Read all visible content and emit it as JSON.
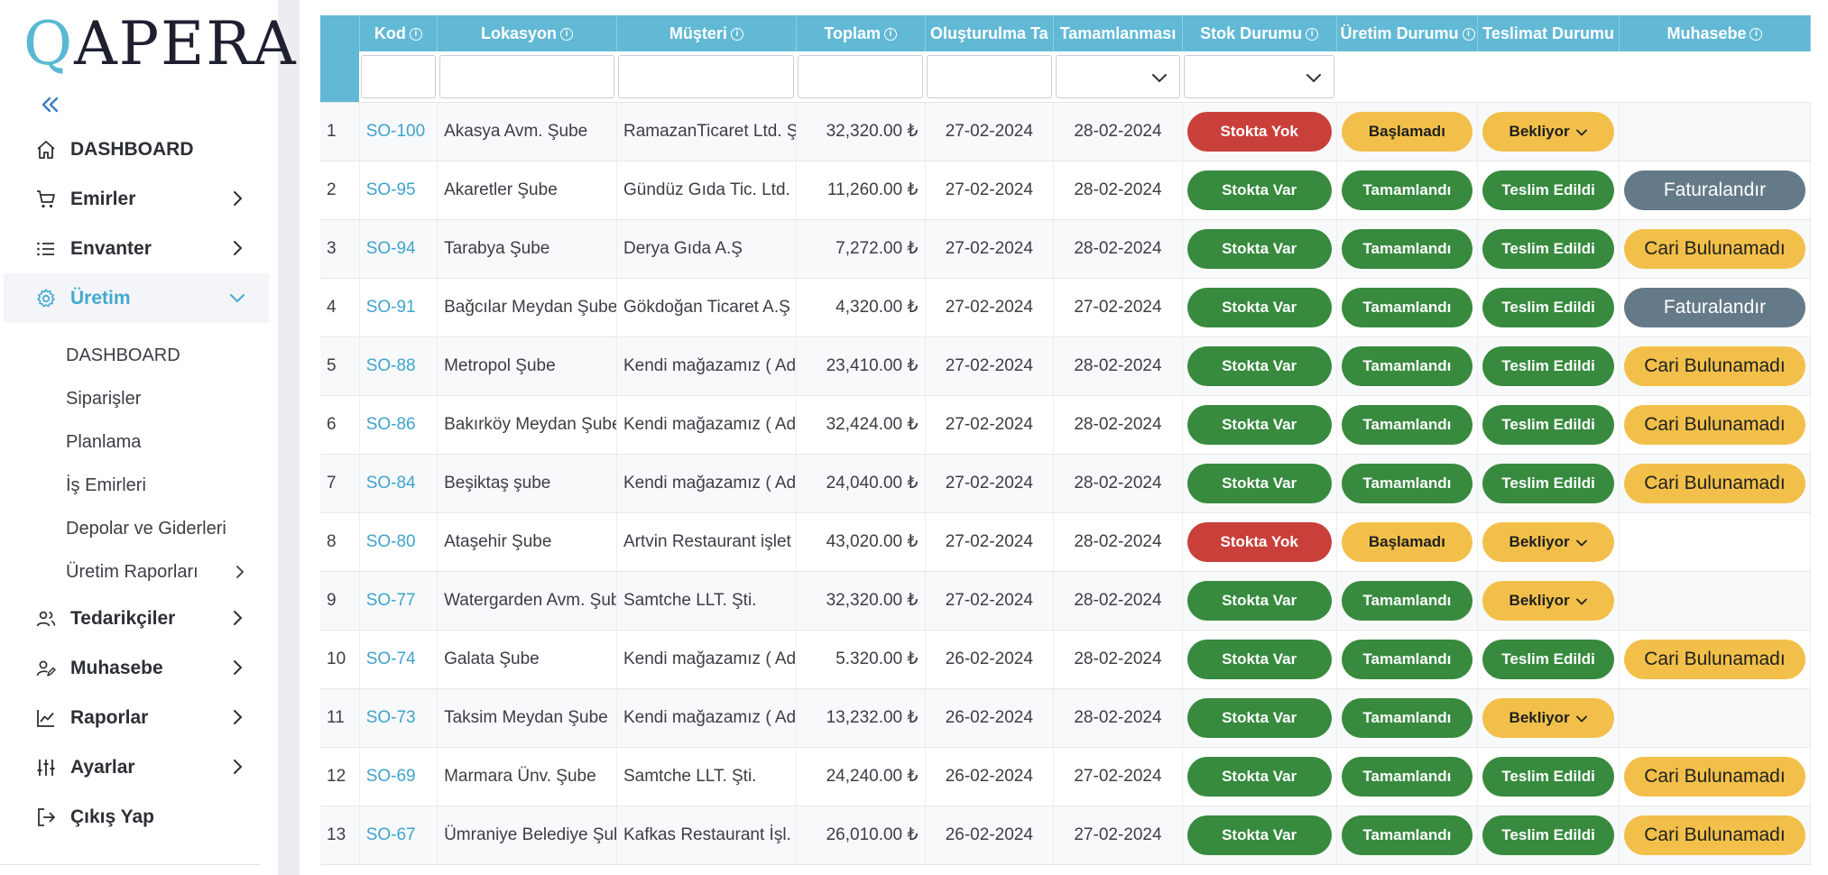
{
  "brand": {
    "logo_q": "Q",
    "logo_rest": "APERA"
  },
  "sidebar": {
    "items": [
      {
        "label": "DASHBOARD",
        "icon": "home-icon",
        "has_chevron": false
      },
      {
        "label": "Emirler",
        "icon": "cart-icon",
        "has_chevron": true
      },
      {
        "label": "Envanter",
        "icon": "list-icon",
        "has_chevron": true
      },
      {
        "label": "Üretim",
        "icon": "gear-icon",
        "has_chevron": true,
        "active": true
      }
    ],
    "subitems": [
      {
        "label": "DASHBOARD"
      },
      {
        "label": "Siparişler"
      },
      {
        "label": "Planlama"
      },
      {
        "label": "İş Emirleri"
      },
      {
        "label": "Depolar ve Giderleri"
      },
      {
        "label": "Üretim Raporları",
        "has_chevron": true
      }
    ],
    "items_after": [
      {
        "label": "Tedarikçiler",
        "icon": "users-icon"
      },
      {
        "label": "Muhasebe",
        "icon": "user-edit-icon"
      },
      {
        "label": "Raporlar",
        "icon": "chart-line-icon"
      },
      {
        "label": "Ayarlar",
        "icon": "sliders-icon"
      },
      {
        "label": "Çıkış Yap",
        "icon": "logout-icon"
      }
    ]
  },
  "table": {
    "columns": [
      {
        "label": "",
        "info": false
      },
      {
        "label": "Kod",
        "info": true
      },
      {
        "label": "Lokasyon",
        "info": true
      },
      {
        "label": "Müşteri",
        "info": true
      },
      {
        "label": "Toplam",
        "info": true
      },
      {
        "label": "Oluşturulma Ta",
        "info": false
      },
      {
        "label": "Tamamlanması",
        "info": false
      },
      {
        "label": "Stok Durumu",
        "info": true
      },
      {
        "label": "Üretim Durumu",
        "info": true
      },
      {
        "label": "Teslimat Durumu",
        "info": false
      },
      {
        "label": "Muhasebe",
        "info": true
      }
    ],
    "rows": [
      {
        "no": "1",
        "code": "SO-100",
        "loc": "Akasya Avm. Şube",
        "cust": "RamazanTicaret Ltd. Ş",
        "total": "32,320.00 ₺",
        "created": "27-02-2024",
        "due": "28-02-2024",
        "stock": "Stokta Yok",
        "prod": "Başlamadı",
        "ship": "Bekliyor",
        "acc": ""
      },
      {
        "no": "2",
        "code": "SO-95",
        "loc": "Akaretler Şube",
        "cust": "Gündüz Gıda Tic. Ltd.",
        "total": "11,260.00 ₺",
        "created": "27-02-2024",
        "due": "28-02-2024",
        "stock": "Stokta Var",
        "prod": "Tamamlandı",
        "ship": "Teslim Edildi",
        "acc": "Faturalandır"
      },
      {
        "no": "3",
        "code": "SO-94",
        "loc": "Tarabya Şube",
        "cust": "Derya Gıda A.Ş",
        "total": "7,272.00 ₺",
        "created": "27-02-2024",
        "due": "28-02-2024",
        "stock": "Stokta Var",
        "prod": "Tamamlandı",
        "ship": "Teslim Edildi",
        "acc": "Cari Bulunamadı"
      },
      {
        "no": "4",
        "code": "SO-91",
        "loc": "Bağcılar Meydan Şube",
        "cust": "Gökdoğan Ticaret A.Ş",
        "total": "4,320.00 ₺",
        "created": "27-02-2024",
        "due": "27-02-2024",
        "stock": "Stokta Var",
        "prod": "Tamamlandı",
        "ship": "Teslim Edildi",
        "acc": "Faturalandır"
      },
      {
        "no": "5",
        "code": "SO-88",
        "loc": "Metropol Şube",
        "cust": "Kendi mağazamız ( Ad",
        "total": "23,410.00 ₺",
        "created": "27-02-2024",
        "due": "28-02-2024",
        "stock": "Stokta Var",
        "prod": "Tamamlandı",
        "ship": "Teslim Edildi",
        "acc": "Cari Bulunamadı"
      },
      {
        "no": "6",
        "code": "SO-86",
        "loc": "Bakırköy Meydan Şube",
        "cust": "Kendi mağazamız ( Ad",
        "total": "32,424.00 ₺",
        "created": "27-02-2024",
        "due": "28-02-2024",
        "stock": "Stokta Var",
        "prod": "Tamamlandı",
        "ship": "Teslim Edildi",
        "acc": "Cari Bulunamadı"
      },
      {
        "no": "7",
        "code": "SO-84",
        "loc": "Beşiktaş şube",
        "cust": "Kendi mağazamız ( Ad",
        "total": "24,040.00 ₺",
        "created": "27-02-2024",
        "due": "28-02-2024",
        "stock": "Stokta Var",
        "prod": "Tamamlandı",
        "ship": "Teslim Edildi",
        "acc": "Cari Bulunamadı"
      },
      {
        "no": "8",
        "code": "SO-80",
        "loc": "Ataşehir Şube",
        "cust": "Artvin Restaurant işlet",
        "total": "43,020.00 ₺",
        "created": "27-02-2024",
        "due": "28-02-2024",
        "stock": "Stokta Yok",
        "prod": "Başlamadı",
        "ship": "Bekliyor",
        "acc": ""
      },
      {
        "no": "9",
        "code": "SO-77",
        "loc": "Watergarden Avm. Şube",
        "cust": "Samtche LLT. Şti.",
        "total": "32,320.00 ₺",
        "created": "27-02-2024",
        "due": "28-02-2024",
        "stock": "Stokta Var",
        "prod": "Tamamlandı",
        "ship": "Bekliyor",
        "acc": ""
      },
      {
        "no": "10",
        "code": "SO-74",
        "loc": "Galata Şube",
        "cust": "Kendi mağazamız ( Ad",
        "total": "5.320.00 ₺",
        "created": "26-02-2024",
        "due": "28-02-2024",
        "stock": "Stokta Var",
        "prod": "Tamamlandı",
        "ship": "Teslim Edildi",
        "acc": "Cari Bulunamadı"
      },
      {
        "no": "11",
        "code": "SO-73",
        "loc": "Taksim Meydan Şube",
        "cust": "Kendi mağazamız ( Ad",
        "total": "13,232.00 ₺",
        "created": "26-02-2024",
        "due": "28-02-2024",
        "stock": "Stokta Var",
        "prod": "Tamamlandı",
        "ship": "Bekliyor",
        "acc": ""
      },
      {
        "no": "12",
        "code": "SO-69",
        "loc": "Marmara Ünv. Şube",
        "cust": "Samtche LLT. Şti.",
        "total": "24,240.00 ₺",
        "created": "26-02-2024",
        "due": "27-02-2024",
        "stock": "Stokta Var",
        "prod": "Tamamlandı",
        "ship": "Teslim Edildi",
        "acc": "Cari Bulunamadı"
      },
      {
        "no": "13",
        "code": "SO-67",
        "loc": "Ümraniye Belediye Şube",
        "cust": "Kafkas Restaurant İşl.",
        "total": "26,010.00 ₺",
        "created": "26-02-2024",
        "due": "27-02-2024",
        "stock": "Stokta Var",
        "prod": "Tamamlandı",
        "ship": "Teslim Edildi",
        "acc": "Cari Bulunamadı"
      }
    ]
  },
  "colors": {
    "accent": "#62b9d5",
    "link": "#3fa3cc",
    "status_red": "#c9403a",
    "status_green": "#378a3e",
    "status_yellow": "#f2c04a",
    "status_slate": "#657a89"
  }
}
